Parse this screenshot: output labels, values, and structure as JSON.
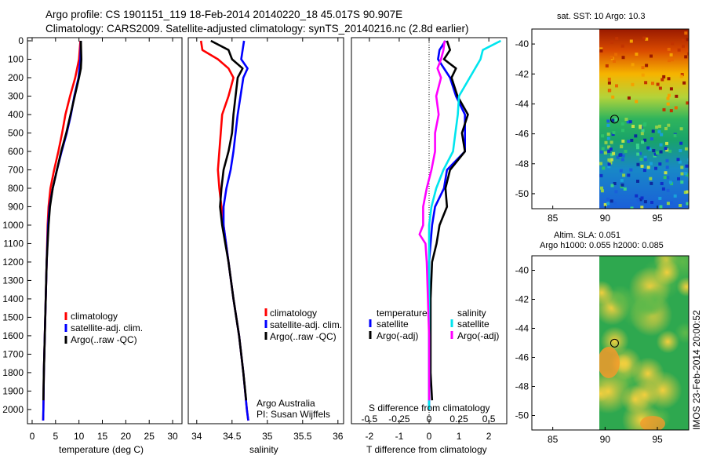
{
  "header": {
    "title_line1": "Argo profile: CS 1901151_119 18-Feb-2014 20140220_18 45.017S 90.907E",
    "title_line2": "Climatology: CARS2009. Satellite-adjusted climatology: synTS_20140216.nc (2.8d earlier)"
  },
  "footer": {
    "stamp": "IMOS 23-Feb-2014 20:00:52"
  },
  "colors": {
    "red": "#ff0000",
    "blue": "#0000ff",
    "black": "#000000",
    "cyan": "#00e5ee",
    "magenta": "#ff00ff"
  },
  "chart_data": [
    {
      "type": "line",
      "id": "temperature",
      "xlabel": "temperature (deg C)",
      "ylabel": "",
      "xlim": [
        -1,
        32
      ],
      "ylim": [
        2080,
        0
      ],
      "xticks": [
        0,
        5,
        10,
        15,
        20,
        25,
        30
      ],
      "yticks": [
        0,
        100,
        200,
        300,
        400,
        500,
        600,
        700,
        800,
        900,
        1000,
        1100,
        1200,
        1300,
        1400,
        1500,
        1600,
        1700,
        1800,
        1900,
        2000
      ],
      "legend": [
        "climatology",
        "satellite-adj. clim.",
        "Argo(..raw -QC)"
      ],
      "series": [
        {
          "name": "climatology",
          "color": "red",
          "depth": [
            0,
            100,
            200,
            300,
            400,
            500,
            600,
            700,
            800,
            900,
            1000,
            1200,
            1400,
            1600,
            1800,
            2000,
            2060
          ],
          "values": [
            10.3,
            10.0,
            9.2,
            8.1,
            7.1,
            6.4,
            5.6,
            4.7,
            3.9,
            3.5,
            3.3,
            3.1,
            2.9,
            2.7,
            2.5,
            2.4,
            2.35
          ]
        },
        {
          "name": "satellite-adj. clim.",
          "color": "blue",
          "depth": [
            0,
            100,
            200,
            300,
            400,
            500,
            600,
            700,
            800,
            900,
            1000,
            1200,
            1400,
            1600,
            1800,
            2000,
            2060
          ],
          "values": [
            10.4,
            10.3,
            9.9,
            9.0,
            8.3,
            7.4,
            6.3,
            5.3,
            4.4,
            3.7,
            3.4,
            3.1,
            2.9,
            2.7,
            2.5,
            2.4,
            2.35
          ]
        },
        {
          "name": "Argo(..raw -QC)",
          "color": "black",
          "depth": [
            0,
            50,
            100,
            150,
            200,
            300,
            400,
            500,
            600,
            700,
            800,
            900,
            1000,
            1200,
            1400,
            1600,
            1800,
            1950
          ],
          "values": [
            10.4,
            10.45,
            10.5,
            10.4,
            10.0,
            9.1,
            8.2,
            7.3,
            6.2,
            5.3,
            4.4,
            3.8,
            3.5,
            3.1,
            2.9,
            2.7,
            2.5,
            2.4
          ]
        }
      ]
    },
    {
      "type": "line",
      "id": "salinity",
      "xlabel": "salinity",
      "ylabel": "",
      "xlim": [
        33.88,
        36.08
      ],
      "ylim": [
        2080,
        0
      ],
      "xticks": [
        34,
        34.5,
        35,
        35.5,
        36
      ],
      "legend": [
        "climatology",
        "satellite-adj. clim.",
        "Argo(..raw -QC)"
      ],
      "annotation_line1": "Argo Australia",
      "annotation_line2": "PI: Susan Wijffels",
      "series": [
        {
          "name": "climatology",
          "color": "red",
          "depth": [
            0,
            50,
            100,
            150,
            200,
            300,
            400,
            500,
            600,
            700,
            800,
            900,
            1000,
            1200,
            1400,
            1600,
            1800,
            2000,
            2060
          ],
          "values": [
            34.06,
            34.08,
            34.3,
            34.45,
            34.52,
            34.45,
            34.36,
            34.34,
            34.32,
            34.3,
            34.32,
            34.35,
            34.38,
            34.45,
            34.52,
            34.6,
            34.66,
            34.71,
            34.73
          ]
        },
        {
          "name": "satellite-adj. clim.",
          "color": "blue",
          "depth": [
            0,
            50,
            100,
            150,
            200,
            300,
            400,
            500,
            600,
            700,
            800,
            900,
            1000,
            1200,
            1400,
            1600,
            1800,
            2000,
            2060
          ],
          "values": [
            34.67,
            34.65,
            34.63,
            34.72,
            34.66,
            34.62,
            34.58,
            34.55,
            34.52,
            34.48,
            34.42,
            34.38,
            34.38,
            34.45,
            34.52,
            34.6,
            34.66,
            34.71,
            34.73
          ]
        },
        {
          "name": "Argo(..raw -QC)",
          "color": "black",
          "depth": [
            0,
            50,
            100,
            150,
            200,
            300,
            400,
            500,
            600,
            700,
            800,
            900,
            1000,
            1200,
            1400,
            1600,
            1800,
            1950
          ],
          "values": [
            34.2,
            34.45,
            34.5,
            34.65,
            34.58,
            34.55,
            34.52,
            34.5,
            34.45,
            34.38,
            34.35,
            34.33,
            34.36,
            34.45,
            34.52,
            34.6,
            34.66,
            34.7
          ]
        }
      ]
    },
    {
      "type": "line",
      "id": "difference",
      "xlabel": "T difference from climatology",
      "xlabel_top": "S difference from climatology",
      "xlim": [
        -2.6,
        2.6
      ],
      "ylim": [
        2080,
        0
      ],
      "xticks": [
        -2,
        -1,
        0,
        1,
        2
      ],
      "xticks_top": [
        -0.5,
        -0.25,
        0,
        0.25,
        0.5
      ],
      "legend_left_title": "temperature",
      "legend_right_title": "salinity",
      "legend": [
        "satellite",
        "Argo(-adj)",
        "satellite",
        "Argo(-adj)"
      ],
      "series": [
        {
          "name": "T satellite",
          "color": "blue",
          "depth": [
            0,
            50,
            100,
            200,
            300,
            400,
            500,
            600,
            700,
            800,
            900,
            1000,
            1200,
            1400,
            1600,
            1800,
            2000
          ],
          "values": [
            0.55,
            0.35,
            0.3,
            0.7,
            0.9,
            1.2,
            1.2,
            1.2,
            0.6,
            0.5,
            0.2,
            0.1,
            0.0,
            0.0,
            0.0,
            0.0,
            0.0
          ]
        },
        {
          "name": "T Argo(-adj)",
          "color": "black",
          "depth": [
            0,
            50,
            100,
            150,
            200,
            300,
            400,
            500,
            600,
            700,
            800,
            900,
            1000,
            1100,
            1200,
            1400,
            1600,
            1800,
            1950
          ],
          "values": [
            0.6,
            0.7,
            0.5,
            0.9,
            0.75,
            0.95,
            1.3,
            1.1,
            1.2,
            0.7,
            0.55,
            0.6,
            0.35,
            0.25,
            0.1,
            0.05,
            0.05,
            0.05,
            0.1
          ]
        },
        {
          "name": "S satellite",
          "color": "cyan",
          "depth": [
            0,
            50,
            100,
            200,
            300,
            400,
            500,
            600,
            700,
            800,
            900,
            1000,
            1200,
            1400,
            1600,
            1800,
            2000
          ],
          "values": [
            0.6,
            0.45,
            0.43,
            0.34,
            0.25,
            0.24,
            0.22,
            0.2,
            0.12,
            0.06,
            0.02,
            0.0,
            0.0,
            0.0,
            0.0,
            0.0,
            0.0
          ]
        },
        {
          "name": "S Argo(-adj)",
          "color": "magenta",
          "depth": [
            0,
            50,
            100,
            150,
            200,
            300,
            400,
            500,
            600,
            700,
            800,
            900,
            1000,
            1050,
            1100,
            1200,
            1400,
            1600,
            1800,
            1950
          ],
          "values": [
            0.13,
            0.12,
            0.1,
            0.07,
            0.1,
            0.06,
            0.08,
            0.05,
            0.05,
            0.02,
            -0.02,
            -0.05,
            -0.05,
            -0.08,
            -0.03,
            -0.02,
            -0.01,
            0.0,
            0.0,
            0.0
          ]
        }
      ]
    },
    {
      "type": "heatmap",
      "id": "sst_map",
      "title": "sat. SST: 10 Argo: 10.3",
      "xlim": [
        83,
        98
      ],
      "ylim": [
        -51,
        -39
      ],
      "xticks": [
        85,
        90,
        95
      ],
      "yticks": [
        -40,
        -42,
        -44,
        -46,
        -48,
        -50
      ],
      "profile_marker": [
        90.907,
        -45.017
      ]
    },
    {
      "type": "heatmap",
      "id": "sla_map",
      "title_line1": "Altim. SLA: 0.051",
      "title_line2": "Argo h1000: 0.055 h2000: 0.085",
      "xlim": [
        83,
        98
      ],
      "ylim": [
        -51,
        -39
      ],
      "xticks": [
        85,
        90,
        95
      ],
      "yticks": [
        -40,
        -42,
        -44,
        -46,
        -48,
        -50
      ],
      "profile_marker": [
        90.907,
        -45.017
      ]
    }
  ]
}
